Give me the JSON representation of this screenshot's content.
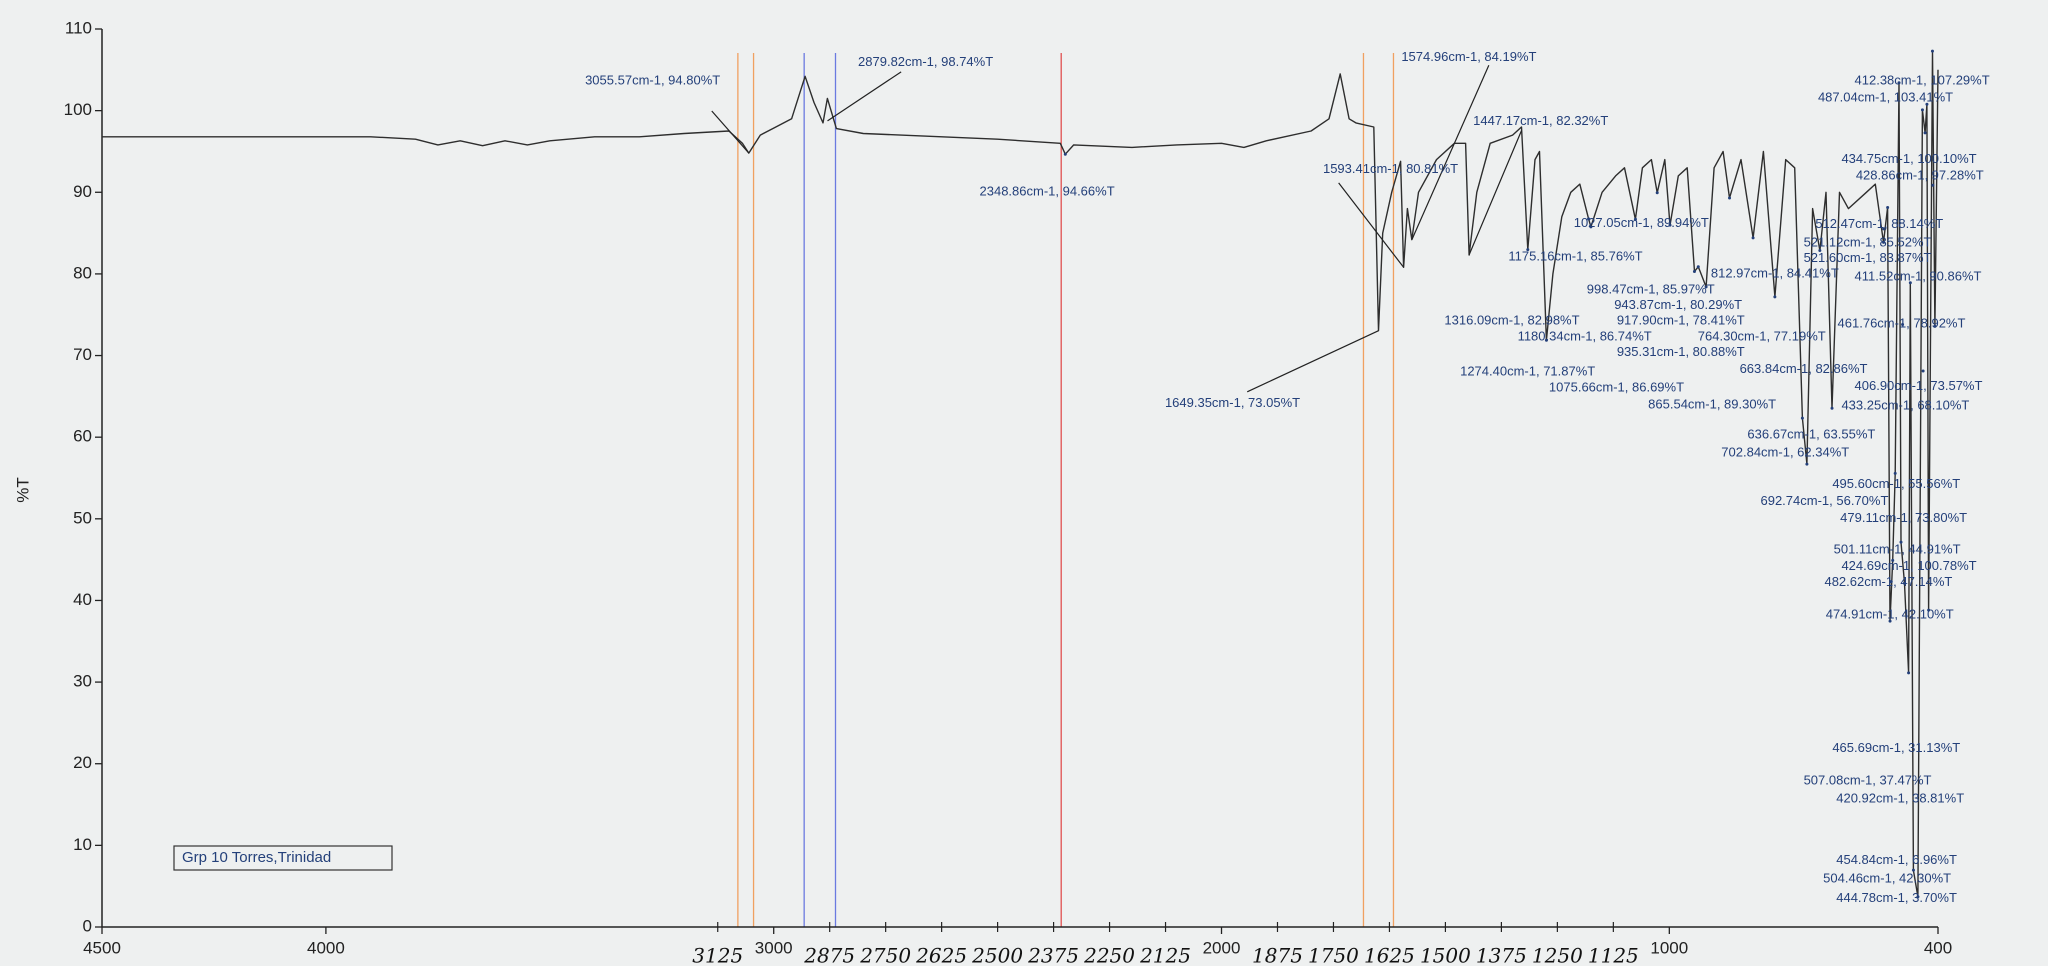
{
  "chart_data": {
    "type": "line",
    "y_label": "%T",
    "legend_text": "Grp 10 Torres,Trinidad",
    "xlim": [
      4500,
      400
    ],
    "ylim": [
      0,
      110
    ],
    "xticks": [
      4500,
      4000,
      3000,
      2000,
      1000,
      400
    ],
    "yticks": [
      0,
      10,
      20,
      30,
      40,
      50,
      60,
      70,
      80,
      90,
      100,
      110
    ],
    "handwritten_ticks": [
      3125,
      2875,
      2750,
      2625,
      2500,
      2375,
      2250,
      2125,
      1875,
      1750,
      1625,
      1500,
      1375,
      1250,
      1125
    ],
    "color": "#2e2e2e",
    "x": [
      4500,
      4200,
      3900,
      3800,
      3750,
      3700,
      3650,
      3600,
      3550,
      3500,
      3400,
      3300,
      3200,
      3100,
      3070,
      3055.57,
      3030,
      2960,
      2930,
      2910,
      2890,
      2880,
      2860,
      2800,
      2500,
      2360,
      2348.86,
      2330,
      2200,
      2100,
      2000,
      1950,
      1900,
      1800,
      1760,
      1735,
      1715,
      1700,
      1660,
      1649.35,
      1640,
      1620,
      1600,
      1593.41,
      1585,
      1574.96,
      1560,
      1520,
      1480,
      1455,
      1447.17,
      1430,
      1400,
      1350,
      1330,
      1316.09,
      1300,
      1290,
      1274.4,
      1260,
      1240,
      1220,
      1200,
      1180.34,
      1175.16,
      1150,
      1120,
      1100,
      1075.66,
      1060,
      1040,
      1027.05,
      1010,
      998.47,
      980,
      960,
      943.87,
      935.31,
      917.9,
      900,
      880,
      865.54,
      840,
      812.97,
      790,
      764.3,
      740,
      720,
      702.84,
      692.74,
      680,
      663.84,
      650,
      636.67,
      620,
      600,
      560,
      540,
      521.6,
      512.47,
      507.08,
      501.11,
      495.6,
      487.04,
      482.62,
      474.91,
      465.69,
      461.76,
      454.84,
      444.78,
      434.75,
      428.86,
      424.69,
      420.92,
      412.38,
      406.9,
      400
    ],
    "values": [
      96.8,
      96.8,
      96.8,
      96.5,
      95.8,
      96.3,
      95.7,
      96.3,
      95.8,
      96.3,
      96.8,
      96.8,
      97.2,
      97.5,
      96,
      94.8,
      97,
      99,
      104.2,
      101,
      98.5,
      101.5,
      97.8,
      97.2,
      96.5,
      96,
      94.66,
      95.8,
      95.5,
      95.8,
      96,
      95.5,
      96.3,
      97.5,
      99,
      104.5,
      99,
      98.5,
      98,
      73.05,
      85,
      90,
      93.8,
      80.81,
      88,
      84.19,
      90,
      94,
      96,
      96,
      82.32,
      90,
      96,
      97,
      98,
      82.98,
      94,
      95,
      71.87,
      80,
      87,
      90,
      91,
      86.74,
      85.76,
      90,
      92,
      93,
      86.69,
      93,
      94,
      89.94,
      94,
      85.97,
      92,
      93,
      80.29,
      80.88,
      78.41,
      93,
      95,
      89.3,
      94,
      84.41,
      95,
      77.19,
      94,
      93,
      62.34,
      56.7,
      88,
      82.86,
      90,
      63.55,
      90,
      88,
      90,
      91,
      83.87,
      88.14,
      37.47,
      44.91,
      55.56,
      103.41,
      47.14,
      42.1,
      31.13,
      78.92,
      6.96,
      3.7,
      100.1,
      97.28,
      100.78,
      38.81,
      107.29,
      73.57,
      105
    ],
    "vlines": [
      {
        "x": 3080,
        "color": "#f0a060"
      },
      {
        "x": 3045,
        "color": "#f0a060"
      },
      {
        "x": 2932,
        "color": "#6a7ae0"
      },
      {
        "x": 2862,
        "color": "#6a7ae0"
      },
      {
        "x": 2358,
        "color": "#e05050"
      },
      {
        "x": 1683,
        "color": "#f0a060"
      },
      {
        "x": 1616,
        "color": "#f0a060"
      }
    ],
    "annotations": [
      {
        "text": "3055.57cm-1, 94.80%T",
        "x": 3055.57,
        "y": 94.8
      },
      {
        "text": "2879.82cm-1, 98.74%T",
        "x": 2879.82,
        "y": 98.74
      },
      {
        "text": "2348.86cm-1, 94.66%T",
        "x": 2348.86,
        "y": 94.66
      },
      {
        "text": "1574.96cm-1, 84.19%T",
        "x": 1574.96,
        "y": 84.19
      },
      {
        "text": "1447.17cm-1, 82.32%T",
        "x": 1447.17,
        "y": 82.32
      },
      {
        "text": "1593.41cm-1, 80.81%T",
        "x": 1593.41,
        "y": 80.81
      },
      {
        "text": "1649.35cm-1, 73.05%T",
        "x": 1649.35,
        "y": 73.05
      },
      {
        "text": "1027.05cm-1, 89.94%T",
        "x": 1027.05,
        "y": 89.94
      },
      {
        "text": "1175.16cm-1, 85.76%T",
        "x": 1175.16,
        "y": 85.76
      },
      {
        "text": "812.97cm-1, 84.41%T",
        "x": 812.97,
        "y": 84.41
      },
      {
        "text": "998.47cm-1, 85.97%T",
        "x": 998.47,
        "y": 85.97
      },
      {
        "text": "943.87cm-1, 80.29%T",
        "x": 943.87,
        "y": 80.29
      },
      {
        "text": "1316.09cm-1, 82.98%T",
        "x": 1316.09,
        "y": 82.98
      },
      {
        "text": "917.90cm-1, 78.41%T",
        "x": 917.9,
        "y": 78.41
      },
      {
        "text": "1180.34cm-1, 86.74%T",
        "x": 1180.34,
        "y": 86.74
      },
      {
        "text": "764.30cm-1, 77.19%T",
        "x": 764.3,
        "y": 77.19
      },
      {
        "text": "935.31cm-1, 80.88%T",
        "x": 935.31,
        "y": 80.88
      },
      {
        "text": "1274.40cm-1, 71.87%T",
        "x": 1274.4,
        "y": 71.87
      },
      {
        "text": "663.84cm-1, 82.86%T",
        "x": 663.84,
        "y": 82.86
      },
      {
        "text": "1075.66cm-1, 86.69%T",
        "x": 1075.66,
        "y": 86.69
      },
      {
        "text": "865.54cm-1, 89.30%T",
        "x": 865.54,
        "y": 89.3
      },
      {
        "text": "636.67cm-1, 63.55%T",
        "x": 636.67,
        "y": 63.55
      },
      {
        "text": "702.84cm-1, 62.34%T",
        "x": 702.84,
        "y": 62.34
      },
      {
        "text": "495.60cm-1, 55.56%T",
        "x": 495.6,
        "y": 55.56
      },
      {
        "text": "692.74cm-1, 56.70%T",
        "x": 692.74,
        "y": 56.7
      },
      {
        "text": "479.11cm-1, 73.80%T",
        "x": 479.11,
        "y": 73.8
      },
      {
        "text": "501.11cm-1, 44.91%T",
        "x": 501.11,
        "y": 44.91
      },
      {
        "text": "424.69cm-1, 100.78%T",
        "x": 424.69,
        "y": 100.78
      },
      {
        "text": "482.62cm-1, 47.14%T",
        "x": 482.62,
        "y": 47.14
      },
      {
        "text": "474.91cm-1, 42.10%T",
        "x": 474.91,
        "y": 42.1
      },
      {
        "text": "465.69cm-1, 31.13%T",
        "x": 465.69,
        "y": 31.13
      },
      {
        "text": "507.08cm-1, 37.47%T",
        "x": 507.08,
        "y": 37.47
      },
      {
        "text": "420.92cm-1, 38.81%T",
        "x": 420.92,
        "y": 38.81
      },
      {
        "text": "454.84cm-1, 6.96%T",
        "x": 454.84,
        "y": 6.96
      },
      {
        "text": "504.46cm-1, 42.30%T",
        "x": 504.46,
        "y": 42.3
      },
      {
        "text": "444.78cm-1, 3.70%T",
        "x": 444.78,
        "y": 3.7
      },
      {
        "text": "412.38cm-1, 107.29%T",
        "x": 412.38,
        "y": 107.29
      },
      {
        "text": "487.04cm-1, 103.41%T",
        "x": 487.04,
        "y": 103.41
      },
      {
        "text": "434.75cm-1, 100.10%T",
        "x": 434.75,
        "y": 100.1
      },
      {
        "text": "428.86cm-1, 97.28%T",
        "x": 428.86,
        "y": 97.28
      },
      {
        "text": "512.47cm-1, 88.14%T",
        "x": 512.47,
        "y": 88.14
      },
      {
        "text": "521.12cm-1, 85.52%T",
        "x": 521.12,
        "y": 85.52
      },
      {
        "text": "521.60cm-1, 83.87%T",
        "x": 521.6,
        "y": 83.87
      },
      {
        "text": "411.52cm-1, 90.86%T",
        "x": 411.52,
        "y": 90.86
      },
      {
        "text": "461.76cm-1, 78.92%T",
        "x": 461.76,
        "y": 78.92
      },
      {
        "text": "406.90cm-1, 73.57%T",
        "x": 406.9,
        "y": 73.57
      },
      {
        "text": "433.25cm-1, 68.10%T",
        "x": 433.25,
        "y": 68.1
      }
    ]
  }
}
